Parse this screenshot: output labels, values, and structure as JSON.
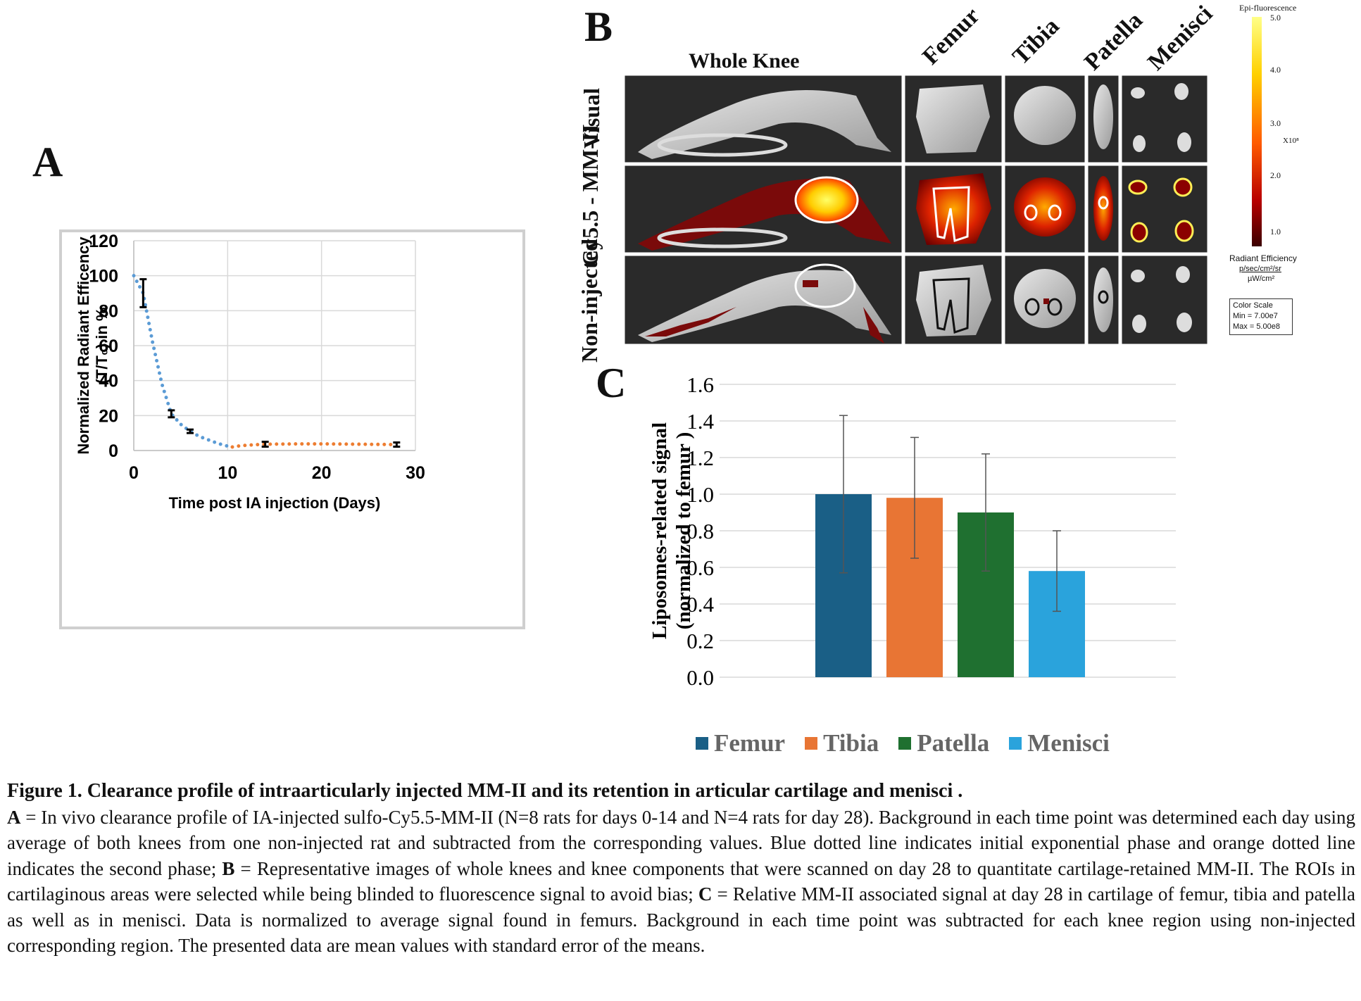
{
  "panels": {
    "a_letter": "A",
    "b_letter": "B",
    "c_letter": "C"
  },
  "chart_data": [
    {
      "panel": "A",
      "type": "line",
      "xlabel": "Time post IA injection (Days)",
      "ylabel_line1": "Normalized Radiant Efficency",
      "ylabel_line2": "(T/T₀) in %",
      "xlim": [
        0,
        30
      ],
      "ylim": [
        0,
        120
      ],
      "xticks": [
        "0",
        "10",
        "20",
        "30"
      ],
      "yticks": [
        "0",
        "20",
        "40",
        "60",
        "80",
        "100",
        "120"
      ],
      "grid": true,
      "series": [
        {
          "color": "#5b9bd5",
          "style": "dotted",
          "x": [
            0,
            1,
            2,
            3,
            4,
            5,
            6,
            7,
            8,
            9,
            10,
            10.5
          ],
          "y": [
            100,
            90,
            62,
            38,
            21,
            15,
            11,
            8,
            6,
            4,
            2.5,
            2
          ]
        },
        {
          "color": "#ed7d31",
          "style": "dotted",
          "x": [
            10.5,
            11,
            12,
            14,
            16,
            18,
            20,
            22,
            24,
            26,
            28
          ],
          "y": [
            2,
            2.5,
            3,
            3.6,
            3.7,
            3.8,
            3.8,
            3.7,
            3.6,
            3.5,
            3.4
          ]
        }
      ],
      "error_bars": [
        {
          "x": 1,
          "y": 90,
          "lo": 82,
          "hi": 98
        },
        {
          "x": 4,
          "y": 21,
          "lo": 19,
          "hi": 23
        },
        {
          "x": 6,
          "y": 11,
          "lo": 10,
          "hi": 12
        },
        {
          "x": 14,
          "y": 3.6,
          "lo": 2.2,
          "hi": 5
        },
        {
          "x": 28,
          "y": 3.4,
          "lo": 2.2,
          "hi": 4.6
        }
      ]
    },
    {
      "panel": "C",
      "type": "bar",
      "categories": [
        "Femur",
        "Tibia",
        "Patella",
        "Menisci"
      ],
      "values": [
        1.0,
        0.98,
        0.9,
        0.58
      ],
      "errors": [
        0.43,
        0.33,
        0.32,
        0.22
      ],
      "colors": [
        "#1a5f86",
        "#e87534",
        "#1f7030",
        "#2aa3dc"
      ],
      "ylabel_line1": "Liposomes-related signal",
      "ylabel_line2": "(normalized to femur )",
      "ylim": [
        0,
        1.6
      ],
      "yticks": [
        "0.0",
        "0.2",
        "0.4",
        "0.6",
        "0.8",
        "1.0",
        "1.2",
        "1.4",
        "1.6"
      ],
      "grid": true,
      "legend_position": "bottom"
    }
  ],
  "panel_b": {
    "column_labels": [
      "Whole Knee",
      "Femur",
      "Tibia",
      "Patella",
      "Menisci"
    ],
    "row_labels": [
      "Visual",
      "Cy5.5 - MM-II",
      "Non-injected"
    ],
    "colorbar": {
      "title": "Epi-fluorescence",
      "ticks": [
        "5.0",
        "4.0",
        "3.0",
        "2.0",
        "1.0"
      ],
      "multiplier": "X10⁸",
      "unit_title": "Radiant Efficiency",
      "unit_fraction": "p/sec/cm²/sr",
      "unit_denominator": "µW/cm²",
      "scale_title": "Color Scale",
      "scale_min": "Min = 7.00e7",
      "scale_max": "Max = 5.00e8"
    }
  },
  "caption": {
    "title": "Figure 1. Clearance profile of intraarticularly injected MM-II and its retention in articular cartilage and menisci .",
    "a_key": "A",
    "a_text": " = In vivo clearance profile of IA-injected sulfo-Cy5.5-MM-II (N=8 rats for days 0-14 and N=4 rats for day 28). Background in each time point was determined each day using average of both knees from one non-injected rat and subtracted from the corresponding values. Blue dotted line indicates initial exponential phase and orange dotted line indicates the second phase; ",
    "b_key": "B",
    "b_text": " = Representative images of whole knees and knee components that were scanned on day 28 to quantitate cartilage-retained MM-II. The ROIs in cartilaginous areas were selected while being blinded to fluorescence signal to avoid bias; ",
    "c_key": "C",
    "c_text": " = Relative MM-II associated signal at day 28 in cartilage of femur, tibia and patella as well as in menisci. Data is normalized to average signal found in femurs.  Background in each time point was subtracted for each knee region using non-injected corresponding region. The presented data are mean values with standard error of the means."
  }
}
